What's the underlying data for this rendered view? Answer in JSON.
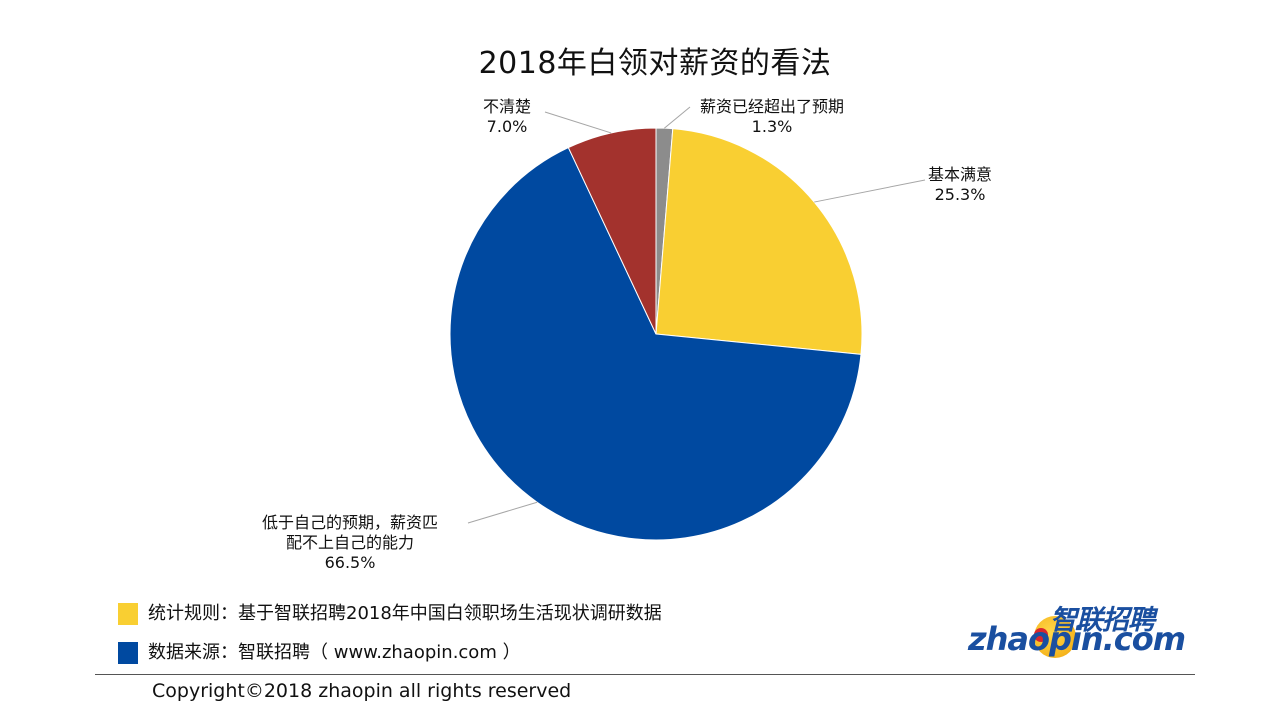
{
  "chart_data": {
    "type": "pie",
    "title": "2018年白领对薪资的看法",
    "slices": [
      {
        "label": "薪资已经超出了预期",
        "value": 1.3,
        "display": "1.3%",
        "color": "#8c8c8c"
      },
      {
        "label": "基本满意",
        "value": 25.3,
        "display": "25.3%",
        "color": "#f9cf32"
      },
      {
        "label": "低于自己的预期，薪资匹配不上自己的能力",
        "label_lines": [
          "低于自己的预期，薪资匹",
          "配不上自己的能力"
        ],
        "value": 66.5,
        "display": "66.5%",
        "color": "#0049a0"
      },
      {
        "label": "不清楚",
        "value": 7.0,
        "display": "7.0%",
        "color": "#a3322d"
      }
    ]
  },
  "footnotes": {
    "rule": {
      "text": "统计规则：基于智联招聘2018年中国白领职场生活现状调研数据",
      "color": "#f9cf32"
    },
    "source": {
      "text": "数据来源：智联招聘（ www.zhaopin.com ）",
      "color": "#0049a0"
    }
  },
  "copyright": "Copyright©2018 zhaopin all rights reserved",
  "logo": {
    "cn": "智联招聘",
    "en": "zhaopin.com"
  }
}
